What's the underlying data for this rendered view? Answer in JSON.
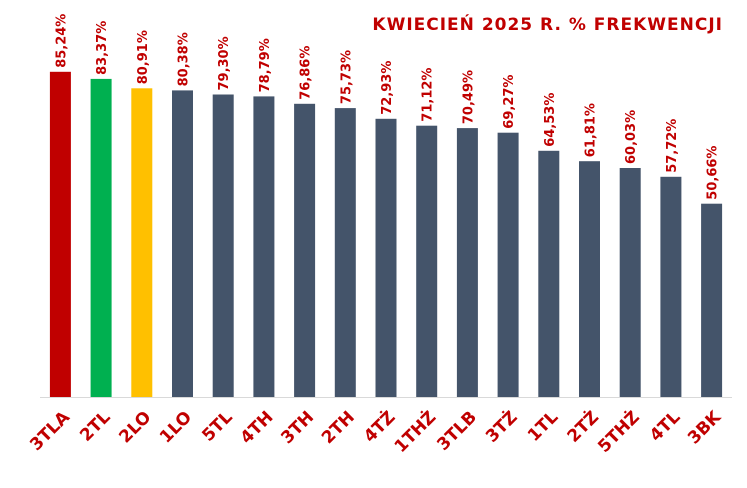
{
  "chart_data": {
    "type": "bar",
    "title": "KWIECIEŃ 2025 R. % FREKWENCJI",
    "xlabel": "",
    "ylabel": "",
    "ylim": [
      0,
      100
    ],
    "grid": false,
    "categories": [
      "3TLA",
      "2TL",
      "2LO",
      "1LO",
      "5TL",
      "4TH",
      "3TH",
      "2TH",
      "4TŻ",
      "1THŻ",
      "3TLB",
      "3TŻ",
      "1TL",
      "2TŻ",
      "5THŻ",
      "4TL",
      "3BK"
    ],
    "values": [
      85.24,
      83.37,
      80.91,
      80.38,
      79.3,
      78.79,
      76.86,
      75.73,
      72.93,
      71.12,
      70.49,
      69.27,
      64.53,
      61.81,
      60.03,
      57.72,
      50.66
    ],
    "data_labels": [
      "85,24%",
      "83,37%",
      "80,91%",
      "80,38%",
      "79,30%",
      "78,79%",
      "76,86%",
      "75,73%",
      "72,93%",
      "71,12%",
      "70,49%",
      "69,27%",
      "64,53%",
      "61,81%",
      "60,03%",
      "57,72%",
      "50,66%"
    ],
    "bar_colors": [
      "#c00000",
      "#00b050",
      "#ffc000",
      "#44546a",
      "#44546a",
      "#44546a",
      "#44546a",
      "#44546a",
      "#44546a",
      "#44546a",
      "#44546a",
      "#44546a",
      "#44546a",
      "#44546a",
      "#44546a",
      "#44546a",
      "#44546a"
    ],
    "label_color": "#c00000",
    "axis_color": "#d9d9d9"
  }
}
